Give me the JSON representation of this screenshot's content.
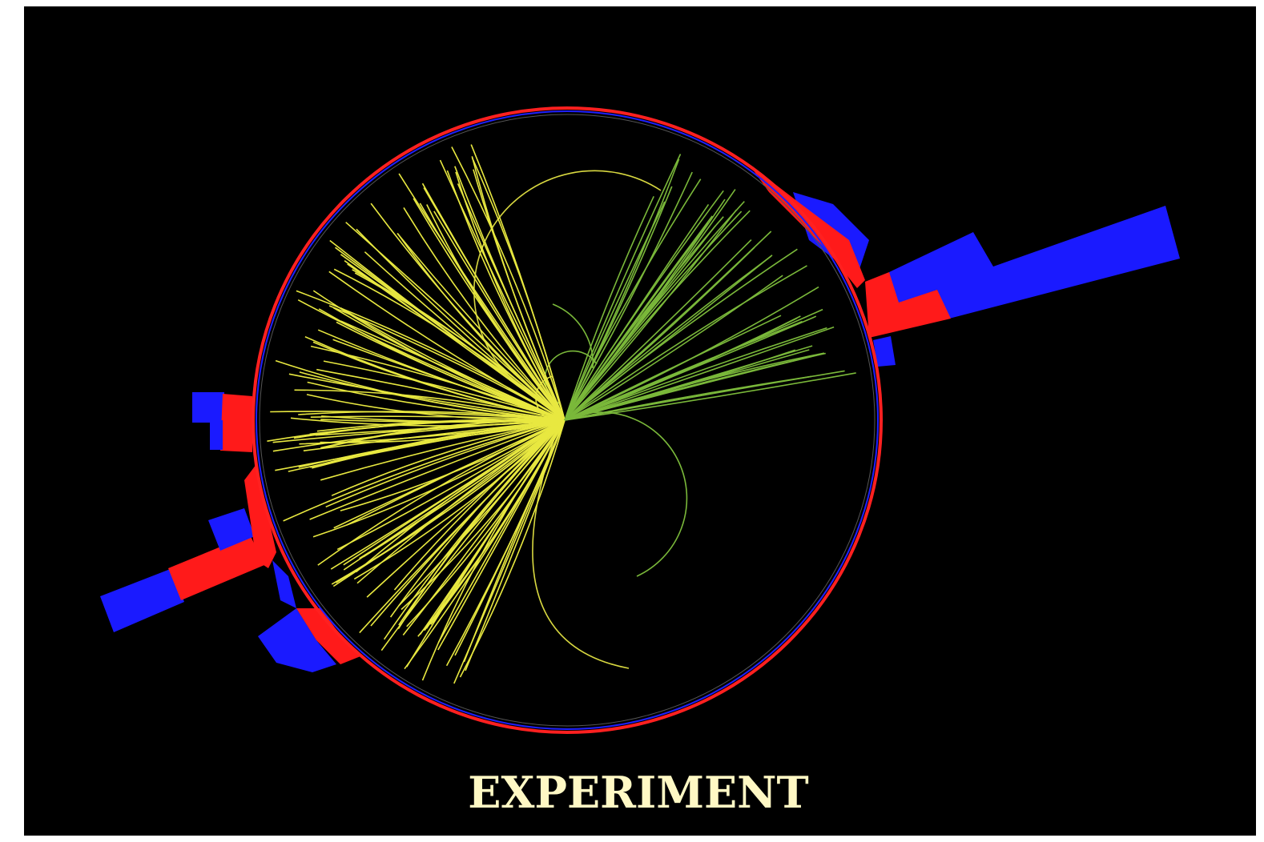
{
  "caption": "EXPERIMENT"
}
